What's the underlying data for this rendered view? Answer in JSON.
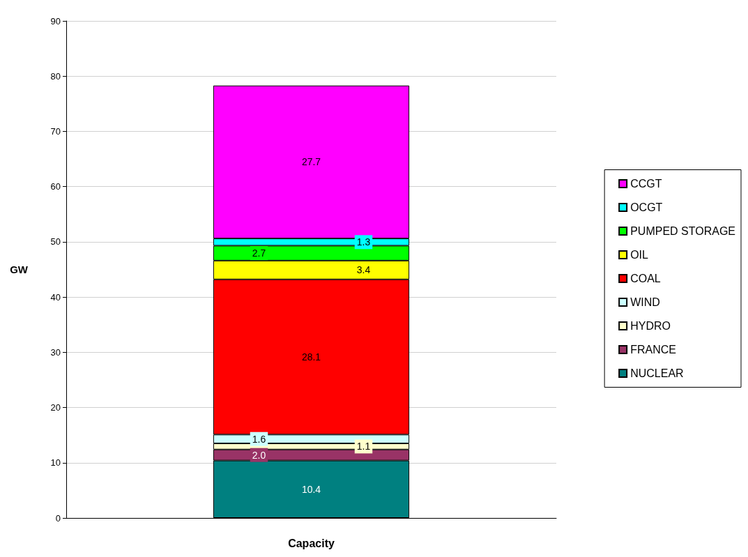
{
  "chart_data": {
    "type": "bar",
    "stacked": true,
    "categories": [
      "Capacity"
    ],
    "ylabel": "GW",
    "ylim": [
      0,
      90
    ],
    "yticks": [
      0,
      10,
      20,
      30,
      40,
      50,
      60,
      70,
      80,
      90
    ],
    "grid": "y",
    "legend": "right",
    "data_labels": true,
    "series": [
      {
        "name": "NUCLEAR",
        "color": "#008080",
        "values": [
          10.4
        ]
      },
      {
        "name": "FRANCE",
        "color": "#993366",
        "values": [
          2.0
        ],
        "value_labels": [
          "2.0"
        ]
      },
      {
        "name": "HYDRO",
        "color": "#ffffcc",
        "values": [
          1.1
        ]
      },
      {
        "name": "WIND",
        "color": "#ccffff",
        "values": [
          1.6
        ]
      },
      {
        "name": "COAL",
        "color": "#ff0000",
        "values": [
          28.1
        ]
      },
      {
        "name": "OIL",
        "color": "#ffff00",
        "values": [
          3.4
        ]
      },
      {
        "name": "PUMPED STORAGE",
        "color": "#00ff00",
        "values": [
          2.7
        ]
      },
      {
        "name": "OCGT",
        "color": "#00ffff",
        "values": [
          1.3
        ]
      },
      {
        "name": "CCGT",
        "color": "#ff00ff",
        "values": [
          27.7
        ]
      }
    ]
  }
}
